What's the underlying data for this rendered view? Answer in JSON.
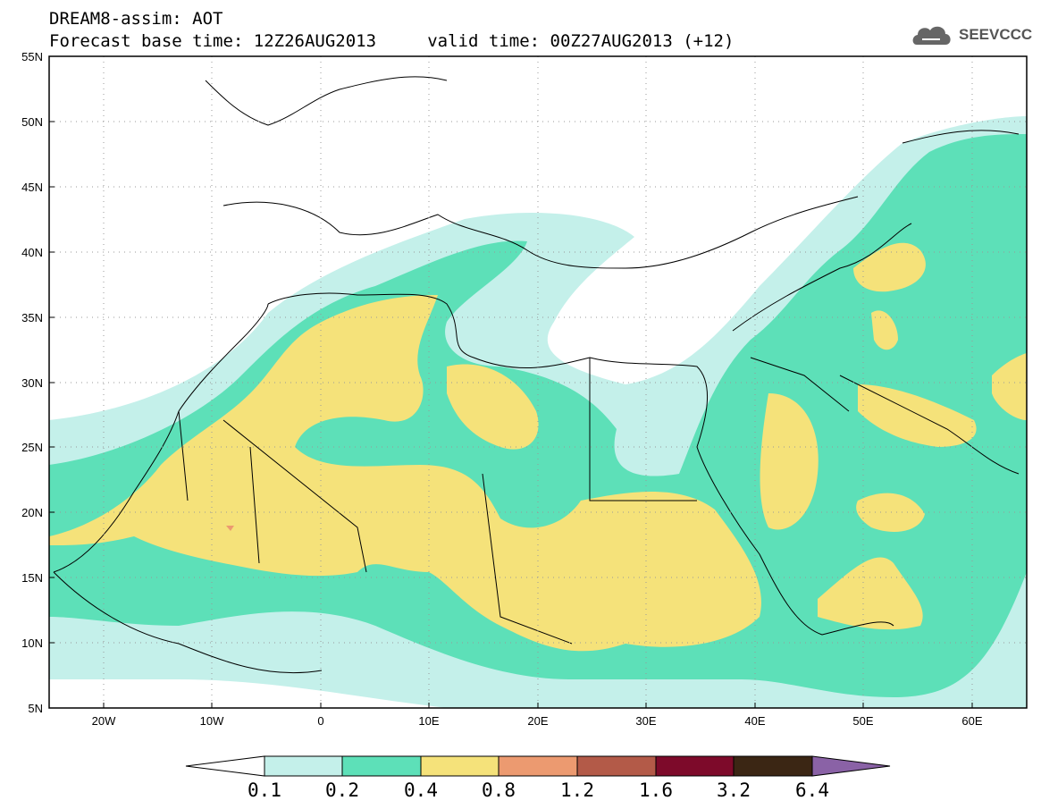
{
  "header": {
    "title_line1": "DREAM8-assim: AOT",
    "title_line2": "Forecast base time: 12Z26AUG2013     valid time: 00Z27AUG2013 (+12)",
    "logo_text": "SEEVCCC"
  },
  "axes": {
    "lat_labels": [
      "55N",
      "50N",
      "45N",
      "40N",
      "35N",
      "30N",
      "25N",
      "20N",
      "15N",
      "10N",
      "5N"
    ],
    "lon_labels": [
      "20W",
      "10W",
      "0",
      "10E",
      "20E",
      "30E",
      "40E",
      "50E",
      "60E"
    ],
    "lat_range": [
      5,
      55
    ],
    "lon_range": [
      -25,
      65
    ]
  },
  "colorbar": {
    "labels": [
      "0.1",
      "0.2",
      "0.4",
      "0.8",
      "1.2",
      "1.6",
      "3.2",
      "6.4"
    ],
    "colors": [
      "#ffffff",
      "#c4f0ea",
      "#5de0b8",
      "#f5e27a",
      "#ec9a70",
      "#b35a48",
      "#7d0a2a",
      "#3b2614",
      "#8a62a6"
    ]
  },
  "icons": [
    "cloud-logo-icon"
  ]
}
